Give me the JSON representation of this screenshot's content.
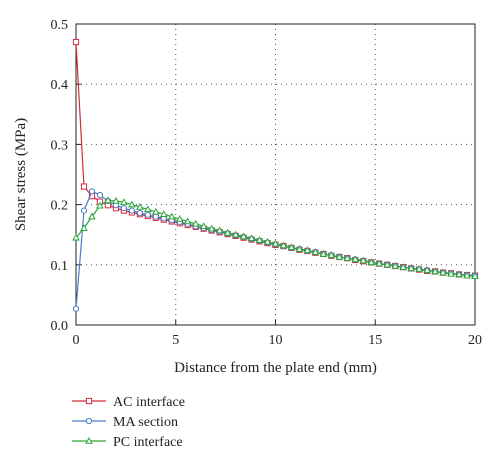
{
  "chart_data": {
    "type": "line",
    "xlabel": "Distance from the plate end (mm)",
    "ylabel": "Shear stress (MPa)",
    "xlim": [
      0,
      20
    ],
    "ylim": [
      0,
      0.5
    ],
    "x_ticks": [
      "0",
      "5",
      "10",
      "15",
      "20"
    ],
    "y_ticks": [
      "0.0",
      "0.1",
      "0.2",
      "0.3",
      "0.4",
      "0.5"
    ],
    "grid": true,
    "legend_position": "below",
    "series": [
      {
        "name": "AC interface",
        "color": "#d62a3c",
        "marker": "square",
        "x": [
          0,
          0.4,
          0.8,
          1.2,
          1.6,
          2.0,
          2.4,
          2.8,
          3.2,
          3.6,
          4.0,
          4.4,
          4.8,
          5.2,
          5.6,
          6.0,
          6.4,
          6.8,
          7.2,
          7.6,
          8.0,
          8.4,
          8.8,
          9.2,
          9.6,
          10.0,
          10.4,
          10.8,
          11.2,
          11.6,
          12.0,
          12.4,
          12.8,
          13.2,
          13.6,
          14.0,
          14.4,
          14.8,
          15.2,
          15.6,
          16.0,
          16.4,
          16.8,
          17.2,
          17.6,
          18.0,
          18.4,
          18.8,
          19.2,
          19.6,
          20.0
        ],
        "y": [
          0.47,
          0.23,
          0.214,
          0.205,
          0.199,
          0.194,
          0.19,
          0.187,
          0.184,
          0.181,
          0.178,
          0.175,
          0.172,
          0.169,
          0.166,
          0.163,
          0.16,
          0.157,
          0.154,
          0.151,
          0.148,
          0.145,
          0.142,
          0.139,
          0.136,
          0.133,
          0.131,
          0.128,
          0.125,
          0.123,
          0.12,
          0.118,
          0.115,
          0.113,
          0.111,
          0.108,
          0.106,
          0.104,
          0.102,
          0.1,
          0.098,
          0.096,
          0.094,
          0.092,
          0.09,
          0.089,
          0.087,
          0.086,
          0.084,
          0.083,
          0.082
        ]
      },
      {
        "name": "MA section",
        "color": "#4a7cc9",
        "marker": "circle",
        "x": [
          0,
          0.4,
          0.8,
          1.2,
          1.6,
          2.0,
          2.4,
          2.8,
          3.2,
          3.6,
          4.0,
          4.4,
          4.8,
          5.2,
          5.6,
          6.0,
          6.4,
          6.8,
          7.2,
          7.6,
          8.0,
          8.4,
          8.8,
          9.2,
          9.6,
          10.0,
          10.4,
          10.8,
          11.2,
          11.6,
          12.0,
          12.4,
          12.8,
          13.2,
          13.6,
          14.0,
          14.4,
          14.8,
          15.2,
          15.6,
          16.0,
          16.4,
          16.8,
          17.2,
          17.6,
          18.0,
          18.4,
          18.8,
          19.2,
          19.6,
          20.0
        ],
        "y": [
          0.027,
          0.19,
          0.222,
          0.216,
          0.206,
          0.199,
          0.194,
          0.19,
          0.186,
          0.183,
          0.18,
          0.177,
          0.174,
          0.171,
          0.168,
          0.164,
          0.161,
          0.158,
          0.155,
          0.152,
          0.149,
          0.146,
          0.143,
          0.14,
          0.137,
          0.134,
          0.131,
          0.128,
          0.126,
          0.123,
          0.121,
          0.118,
          0.116,
          0.113,
          0.111,
          0.109,
          0.107,
          0.104,
          0.102,
          0.1,
          0.098,
          0.096,
          0.094,
          0.093,
          0.091,
          0.089,
          0.087,
          0.086,
          0.084,
          0.083,
          0.082
        ]
      },
      {
        "name": "PC interface",
        "color": "#2aa63a",
        "marker": "triangle",
        "x": [
          0,
          0.4,
          0.8,
          1.2,
          1.6,
          2.0,
          2.4,
          2.8,
          3.2,
          3.6,
          4.0,
          4.4,
          4.8,
          5.2,
          5.6,
          6.0,
          6.4,
          6.8,
          7.2,
          7.6,
          8.0,
          8.4,
          8.8,
          9.2,
          9.6,
          10.0,
          10.4,
          10.8,
          11.2,
          11.6,
          12.0,
          12.4,
          12.8,
          13.2,
          13.6,
          14.0,
          14.4,
          14.8,
          15.2,
          15.6,
          16.0,
          16.4,
          16.8,
          17.2,
          17.6,
          18.0,
          18.4,
          18.8,
          19.2,
          19.6,
          20.0
        ],
        "y": [
          0.145,
          0.161,
          0.18,
          0.198,
          0.207,
          0.206,
          0.204,
          0.2,
          0.196,
          0.192,
          0.188,
          0.184,
          0.18,
          0.176,
          0.172,
          0.168,
          0.164,
          0.16,
          0.157,
          0.153,
          0.15,
          0.147,
          0.144,
          0.141,
          0.138,
          0.135,
          0.132,
          0.129,
          0.126,
          0.124,
          0.121,
          0.118,
          0.116,
          0.113,
          0.111,
          0.109,
          0.107,
          0.104,
          0.102,
          0.1,
          0.098,
          0.096,
          0.094,
          0.093,
          0.091,
          0.089,
          0.087,
          0.085,
          0.084,
          0.082,
          0.081
        ]
      }
    ]
  }
}
